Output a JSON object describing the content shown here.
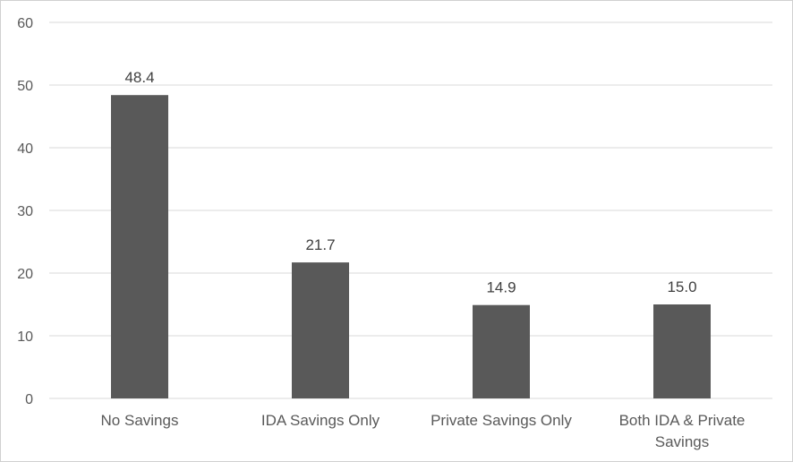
{
  "chart_data": {
    "type": "bar",
    "title": "",
    "xlabel": "",
    "ylabel": "",
    "categories": [
      "No Savings",
      "IDA Savings Only",
      "Private Savings Only",
      "Both IDA & Private Savings"
    ],
    "category_lines": [
      [
        "No Savings"
      ],
      [
        "IDA Savings Only"
      ],
      [
        "Private Savings Only"
      ],
      [
        "Both IDA & Private",
        "Savings"
      ]
    ],
    "values": [
      48.4,
      21.7,
      14.9,
      15.0
    ],
    "value_labels": [
      "48.4",
      "21.7",
      "14.9",
      "15.0"
    ],
    "ylim": [
      0,
      60
    ],
    "yticks": [
      0,
      10,
      20,
      30,
      40,
      50,
      60
    ],
    "grid": true,
    "legend": "none",
    "bar_color": "#595959",
    "grid_color": "#d9d9d9"
  }
}
